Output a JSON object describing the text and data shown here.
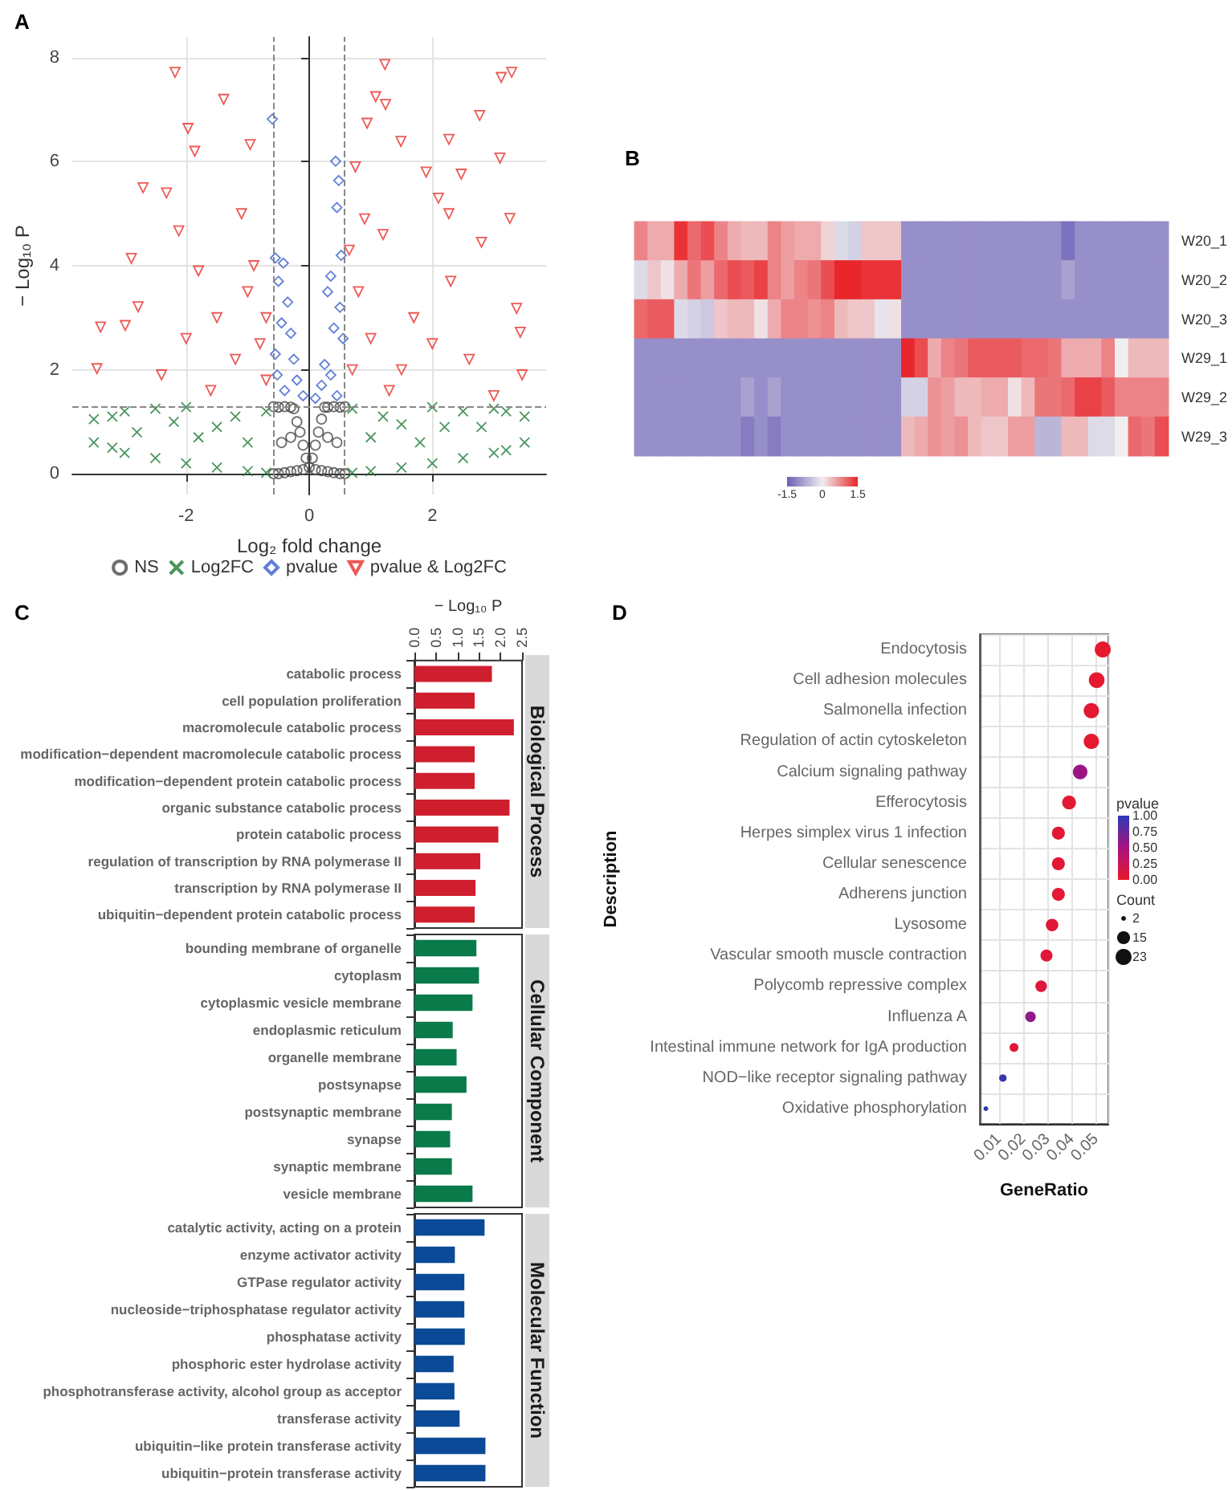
{
  "chart_data": [
    {
      "type": "scatter",
      "title": "A",
      "xlabel": "Log₂ fold change",
      "ylabel": "− Log₁₀ P",
      "xlim": [
        -3.85,
        3.85
      ],
      "ylim": [
        -0.4,
        8.4
      ],
      "xticks": [
        -2,
        0,
        2
      ],
      "yticks": [
        0,
        2,
        4,
        6,
        8
      ],
      "grid": true,
      "legend": "bottom",
      "ref_lines": [
        {
          "axis": "x",
          "value": -0.58,
          "color": "#888888",
          "line_style": "dashed"
        },
        {
          "axis": "x",
          "value": 0.58,
          "color": "#888888",
          "line_style": "dashed"
        },
        {
          "axis": "y",
          "value": 1.3,
          "color": "#888888",
          "line_style": "dashed"
        }
      ],
      "series": [
        {
          "name": "NS",
          "color": "#4a4a4a",
          "marker": "circle",
          "x": [
            -0.58,
            -0.58,
            -0.5,
            -0.5,
            -0.4,
            -0.4,
            -0.3,
            -0.3,
            -0.25,
            -0.2,
            -0.2,
            -0.15,
            -0.1,
            -0.1,
            -0.05,
            0,
            0.05,
            0.1,
            0.1,
            0.15,
            0.2,
            0.2,
            0.25,
            0.3,
            0.3,
            0.4,
            0.4,
            0.5,
            0.5,
            0.58,
            0.58,
            -0.45,
            0.45,
            -0.3,
            0.3
          ],
          "values": [
            0,
            1.29,
            0,
            1.28,
            0.02,
            1.29,
            0.04,
            1.28,
            1.25,
            0.06,
            1,
            0.8,
            0.08,
            0.55,
            0.3,
            0.12,
            0.3,
            0.08,
            0.55,
            0.8,
            0.06,
            1.05,
            1.28,
            0.04,
            1.28,
            0.02,
            1.29,
            0,
            1.28,
            0,
            1.29,
            0.6,
            0.6,
            0.7,
            0.7
          ]
        },
        {
          "name": "Log2FC",
          "color": "#1e7b34",
          "marker": "cross",
          "x": [
            -3.5,
            -3.5,
            -3.2,
            -3.2,
            -3,
            -3,
            -2.5,
            -2.5,
            -2,
            -2,
            -1.5,
            -1.5,
            -1,
            -1,
            -0.7,
            -0.7,
            -2.8,
            -1.8,
            -1.2,
            -2.2,
            3.5,
            3.5,
            3.2,
            3.2,
            3,
            3,
            2.5,
            2.5,
            2,
            2,
            1.5,
            1.5,
            1,
            1,
            0.7,
            0.7,
            2.8,
            1.8,
            1.2,
            2.2
          ],
          "values": [
            0.6,
            1.05,
            0.5,
            1.1,
            0.4,
            1.2,
            0.3,
            1.25,
            0.2,
            1.28,
            0.12,
            0.9,
            0.05,
            0.6,
            0.02,
            1.2,
            0.8,
            0.7,
            1.1,
            1,
            0.6,
            1.1,
            0.45,
            1.2,
            0.4,
            1.25,
            0.3,
            1.2,
            0.2,
            1.28,
            0.12,
            0.95,
            0.05,
            0.7,
            0.02,
            1.25,
            0.9,
            0.6,
            1.1,
            0.9
          ]
        },
        {
          "name": "pvalue",
          "color": "#3a5fcd",
          "marker": "diamond",
          "x": [
            -0.6,
            0.43,
            0.48,
            0.45,
            -0.55,
            -0.42,
            -0.5,
            -0.35,
            0.35,
            0.3,
            0.52,
            -0.3,
            -0.25,
            -0.2,
            0.2,
            0.25,
            0.4,
            0.5,
            -0.45,
            -0.55,
            0.55,
            -0.1,
            0.1,
            -0.4,
            0.45,
            -0.52,
            0.35
          ],
          "values": [
            6.82,
            6.01,
            5.64,
            5.12,
            4.15,
            4.05,
            3.7,
            3.3,
            3.8,
            3.5,
            4.2,
            2.7,
            2.2,
            1.8,
            1.7,
            2.1,
            2.8,
            3.2,
            2.9,
            2.3,
            2.6,
            1.5,
            1.45,
            1.6,
            1.5,
            1.9,
            1.9
          ]
        },
        {
          "name": "pvalue & Log2FC",
          "color": "#e8302c",
          "marker": "triangle",
          "x": [
            -2.18,
            -1.39,
            -1.97,
            1.23,
            1.08,
            1.24,
            3.12,
            3.29,
            2.77,
            0.94,
            1.49,
            3.1,
            2.27,
            2.47,
            -2.7,
            -2.32,
            -1.86,
            -0.96,
            -2.89,
            3.26,
            2.27,
            2.8,
            -2.12,
            -2.78,
            -3.39,
            -2.99,
            3.37,
            3.43,
            -3.45,
            3.46,
            -1,
            -0.8,
            -0.7,
            -1.2,
            -1.5,
            -0.9,
            -1.1,
            -0.7,
            -1.6,
            -2,
            -2.4,
            -1.8,
            0.7,
            0.8,
            1,
            1.2,
            0.9,
            1.5,
            1.7,
            2,
            2.3,
            2.6,
            3,
            1.3,
            0.65,
            1.9,
            2.1,
            0.75
          ],
          "values": [
            7.72,
            7.2,
            6.64,
            7.87,
            7.25,
            7.1,
            7.62,
            7.72,
            6.89,
            6.74,
            6.39,
            6.07,
            6.43,
            5.76,
            5.5,
            5.4,
            6.2,
            6.33,
            4.14,
            4.91,
            5,
            4.45,
            4.67,
            3.21,
            2.82,
            2.85,
            3.18,
            2.72,
            2.02,
            1.9,
            3.5,
            2.5,
            1.8,
            2.2,
            3,
            4,
            5,
            3,
            1.6,
            2.6,
            1.9,
            3.9,
            2,
            3.5,
            2.6,
            4.6,
            4.9,
            2,
            3,
            2.5,
            3.7,
            2.2,
            1.5,
            1.6,
            4.3,
            5.8,
            5.3,
            5.9
          ]
        }
      ]
    },
    {
      "type": "heatmap",
      "title": "B",
      "categories": [
        null,
        null,
        null,
        null,
        null,
        null,
        null,
        null,
        null,
        null,
        null,
        null,
        null,
        null,
        null,
        null,
        null,
        null,
        null,
        null,
        null,
        null,
        null,
        null,
        null,
        null,
        null,
        null,
        null,
        null,
        null,
        null,
        null,
        null,
        null,
        null,
        null,
        null,
        null,
        null
      ],
      "y_categories": [
        "W20_1",
        "W20_2",
        "W20_3",
        "W29_1",
        "W29_2",
        "W29_3"
      ],
      "tick_labels": "y",
      "clim": [
        -1.5,
        1.5
      ],
      "cticks": [
        -1.5,
        0,
        1.5
      ],
      "cells": [
        [
          0.8,
          0.5,
          0.5,
          1.4,
          1,
          1.2,
          0.8,
          0.5,
          0.4,
          0.4,
          0.8,
          0.6,
          0.5,
          0.5,
          0.2,
          -0.2,
          -0.3,
          0.3,
          0.3,
          0.3,
          -1,
          -1,
          -1,
          -1,
          -1,
          -1,
          -1,
          -1,
          -1,
          -1,
          -1,
          -1,
          -1.3,
          -1,
          -1,
          -1,
          -1,
          -1,
          -1,
          -1
        ],
        [
          -0.2,
          0.3,
          0.1,
          0.5,
          0.9,
          0.6,
          1,
          1.2,
          1.1,
          1.3,
          0.8,
          0.6,
          0.8,
          0.9,
          1.2,
          1.5,
          1.5,
          1.4,
          1.4,
          1.4,
          -1,
          -1,
          -1,
          -1,
          -1,
          -1,
          -1,
          -1,
          -1,
          -1,
          -1,
          -1,
          -0.8,
          -1,
          -1,
          -1,
          -1,
          -1,
          -1,
          -1
        ],
        [
          1,
          1.1,
          1.1,
          -0.2,
          -0.3,
          -0.4,
          0.3,
          0.4,
          0.4,
          0.1,
          0.5,
          0.8,
          0.8,
          0.7,
          0.8,
          0.4,
          0.3,
          0.3,
          -0.1,
          0.1,
          -1,
          -1,
          -1,
          -1,
          -1,
          -1,
          -1,
          -1,
          -1,
          -1,
          -1,
          -1,
          -1,
          -1,
          -1,
          -1,
          -1,
          -1,
          -1,
          -1
        ],
        [
          -1,
          -1,
          -1,
          -1,
          -1,
          -1,
          -1,
          -1,
          -1,
          -1,
          -1,
          -1,
          -1,
          -1,
          -1,
          -1,
          -1,
          -1,
          -1,
          -1,
          1.5,
          1.2,
          0.5,
          0.8,
          0.9,
          1.1,
          1.1,
          1.1,
          1.1,
          1,
          1,
          0.9,
          0.5,
          0.5,
          0.5,
          0.8,
          0,
          0.4,
          0.4,
          0.4
        ],
        [
          -1,
          -1,
          -1,
          -1,
          -1,
          -1,
          -1,
          -1,
          -0.8,
          -1,
          -0.8,
          -1,
          -1,
          -1,
          -1,
          -1,
          -1,
          -1,
          -1,
          -1,
          -0.3,
          -0.3,
          0.7,
          0.6,
          0.4,
          0.4,
          0.5,
          0.5,
          0.1,
          0.4,
          0.9,
          0.9,
          1,
          1.3,
          1.3,
          1.1,
          0.8,
          0.8,
          0.8,
          0.8
        ],
        [
          -1,
          -1,
          -1,
          -1,
          -1,
          -1,
          -1,
          -1,
          -1.2,
          -1,
          -1.2,
          -1,
          -1,
          -1,
          -1,
          -1,
          -1,
          -1,
          -1,
          -1,
          0.4,
          0.5,
          0.7,
          0.6,
          0.7,
          0.4,
          0.3,
          0.3,
          0.6,
          0.6,
          -0.6,
          -0.6,
          0.4,
          0.4,
          -0.2,
          -0.2,
          0,
          1,
          0.9,
          1.2
        ]
      ]
    },
    {
      "type": "bar",
      "orientation": "horizontal",
      "title": "C",
      "xlabel": "− Log₁₀ P",
      "y2label": "Biological Process",
      "color": "#cf1f2e",
      "xlim": [
        0,
        2.5
      ],
      "xticks": [
        {
          "value": 0,
          "label": "0.0"
        },
        {
          "value": 0.5,
          "label": "0.5"
        },
        {
          "value": 1,
          "label": "1.0"
        },
        {
          "value": 1.5,
          "label": "1.5"
        },
        {
          "value": 2,
          "label": "2.0"
        },
        {
          "value": 2.5,
          "label": "2.5"
        }
      ],
      "categories": [
        "catabolic process",
        "cell population proliferation",
        "macromolecule catabolic process",
        "modification−dependent macromolecule catabolic process",
        "modification−dependent protein catabolic process",
        "organic substance catabolic process",
        "protein catabolic process",
        "regulation of transcription by RNA polymerase II",
        "transcription by RNA polymerase II",
        "ubiquitin−dependent protein catabolic process"
      ],
      "values": [
        1.8,
        1.4,
        2.31,
        1.4,
        1.4,
        2.21,
        1.95,
        1.53,
        1.42,
        1.4
      ]
    },
    {
      "type": "bar",
      "orientation": "horizontal",
      "y2label": "Cellular Component",
      "color": "#0a7a4a",
      "xlim": [
        0,
        2.5
      ],
      "tick_labels": "y",
      "categories": [
        "bounding membrane of organelle",
        "cytoplasm",
        "cytoplasmic vesicle membrane",
        "endoplasmic reticulum",
        "organelle membrane",
        "postsynapse",
        "postsynaptic membrane",
        "synapse",
        "synaptic membrane",
        "vesicle membrane"
      ],
      "values": [
        1.44,
        1.5,
        1.35,
        0.89,
        0.98,
        1.21,
        0.87,
        0.83,
        0.87,
        1.35
      ]
    },
    {
      "type": "bar",
      "orientation": "horizontal",
      "y2label": "Molecular Function",
      "color": "#0b4a96",
      "xlim": [
        0,
        2.5
      ],
      "tick_labels": "y",
      "categories": [
        "catalytic activity, acting on a protein",
        "enzyme activator activity",
        "GTPase regulator activity",
        "nucleoside−triphosphatase regulator activity",
        "phosphatase activity",
        "phosphoric ester hydrolase activity",
        "phosphotransferase activity, alcohol group as acceptor",
        "transferase activity",
        "ubiquitin−like protein transferase activity",
        "ubiquitin−protein transferase activity"
      ],
      "values": [
        1.63,
        0.94,
        1.16,
        1.16,
        1.17,
        0.91,
        0.93,
        1.05,
        1.65,
        1.65
      ]
    },
    {
      "type": "bubble",
      "orientation": "horizontal",
      "title": "D",
      "xlabel": "GeneRatio",
      "ylabel": "Description",
      "clabel": "pvalue",
      "legend_title": "Count",
      "grid": true,
      "xlim": [
        0.002,
        0.055
      ],
      "xticks": [
        0.01,
        0.02,
        0.03,
        0.04,
        0.05
      ],
      "categories": [
        "Endocytosis",
        "Cell adhesion molecules",
        "Salmonella infection",
        "Regulation of actin cytoskeleton",
        "Calcium signaling pathway",
        "Efferocytosis",
        "Herpes simplex virus 1 infection",
        "Cellular senescence",
        "Adherens junction",
        "Lysosome",
        "Vascular smooth muscle contraction",
        "Polycomb repressive complex",
        "Influenza A",
        "Intestinal immune network for IgA production",
        "NOD−like receptor signaling pathway",
        "Oxidative phosphorylation"
      ],
      "values": [
        0.0527,
        0.0502,
        0.048,
        0.048,
        0.0434,
        0.0388,
        0.0344,
        0.0344,
        0.0344,
        0.0318,
        0.0295,
        0.0273,
        0.0229,
        0.0161,
        0.0115,
        0.0045
      ],
      "sizes": [
        23,
        22,
        21,
        21,
        19,
        17,
        15,
        15,
        15,
        14,
        13,
        12,
        10,
        7,
        5,
        2
      ],
      "cvalues": [
        0.01,
        0.02,
        0.03,
        0.03,
        0.55,
        0.04,
        0.05,
        0.05,
        0.05,
        0.06,
        0.06,
        0.08,
        0.6,
        0.07,
        0.95,
        1
      ],
      "clim": [
        0,
        1
      ],
      "cticks": [
        {
          "value": 0,
          "label": "0.00"
        },
        {
          "value": 0.25,
          "label": "0.25"
        },
        {
          "value": 0.5,
          "label": "0.50"
        },
        {
          "value": 0.75,
          "label": "0.75"
        },
        {
          "value": 1,
          "label": "1.00"
        }
      ],
      "size_legend": [
        2,
        15,
        23
      ]
    }
  ]
}
